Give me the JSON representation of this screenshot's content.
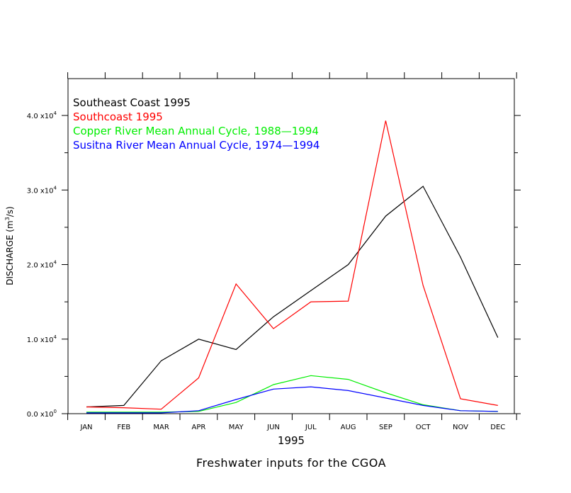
{
  "chart_data": {
    "type": "line",
    "title": "Freshwater inputs for the CGOA",
    "xlabel": "1995",
    "ylabel_main": "DISCHARGE (m",
    "ylabel_sup": "3",
    "ylabel_end": "/s)",
    "categories": [
      "JAN",
      "FEB",
      "MAR",
      "APR",
      "MAY",
      "JUN",
      "JUL",
      "AUG",
      "SEP",
      "OCT",
      "NOV",
      "DEC"
    ],
    "ylim": [
      0,
      45000
    ],
    "yticks": [
      {
        "value": 0,
        "mantissa": "0.0",
        "exponent": "0"
      },
      {
        "value": 10000,
        "mantissa": "1.0",
        "exponent": "4"
      },
      {
        "value": 20000,
        "mantissa": "2.0",
        "exponent": "4"
      },
      {
        "value": 30000,
        "mantissa": "3.0",
        "exponent": "4"
      },
      {
        "value": 40000,
        "mantissa": "4.0",
        "exponent": "4"
      }
    ],
    "tick_times": "x10",
    "grid": false,
    "legend_position": "top-left",
    "series": [
      {
        "name": "Southeast Coast 1995",
        "color": "#000000",
        "values": [
          900,
          1100,
          7100,
          10000,
          8600,
          13000,
          16500,
          20000,
          26500,
          30500,
          21000,
          10200
        ]
      },
      {
        "name": "Southcoast 1995",
        "color": "#ff0000",
        "values": [
          900,
          800,
          600,
          4800,
          17400,
          11400,
          15000,
          15100,
          39300,
          17200,
          2000,
          1100
        ]
      },
      {
        "name": "Copper River Mean Annual Cycle, 1988—1994",
        "color": "#00ee00",
        "values": [
          200,
          200,
          200,
          300,
          1500,
          3900,
          5100,
          4600,
          2800,
          1200,
          400,
          300
        ]
      },
      {
        "name": "Susitna River Mean Annual Cycle, 1974—1994",
        "color": "#0000ff",
        "values": [
          100,
          100,
          100,
          400,
          1900,
          3300,
          3600,
          3100,
          2100,
          1100,
          400,
          300
        ]
      }
    ]
  }
}
